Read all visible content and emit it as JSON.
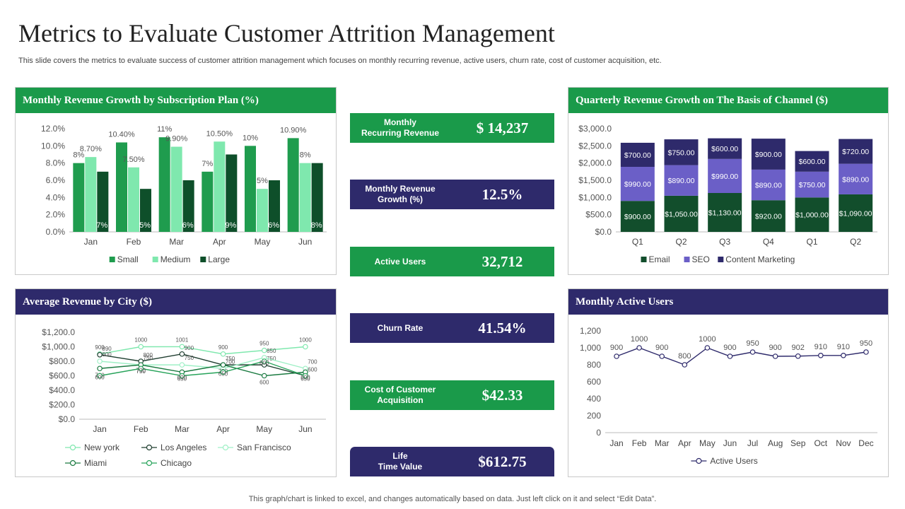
{
  "header": {
    "title": "Metrics to Evaluate Customer Attrition Management",
    "subtitle": "This slide covers the metrics to evaluate success of customer attrition management which focuses on monthly recurring revenue, active users, churn rate, cost of customer acquisition, etc."
  },
  "footer": "This graph/chart is linked to excel,  and changes automatically based on data. Just left click on it and select “Edit Data”.",
  "panels": {
    "monthly_growth": "Monthly Revenue Growth  by Subscription  Plan (%)",
    "quarterly": "Quarterly  Revenue Growth  on The Basis of Channel ($)",
    "city": "Average Revenue by City ($)",
    "active": "Monthly Active Users"
  },
  "kpis": [
    {
      "label": "Monthly\nRecurring Revenue",
      "value": "$ 14,237",
      "color": "green"
    },
    {
      "label": "Monthly Revenue\nGrowth (%)",
      "value": "12.5%",
      "color": "navy"
    },
    {
      "label": "Active Users",
      "value": "32,712",
      "color": "green"
    },
    {
      "label": "Churn Rate",
      "value": "41.54%",
      "color": "navy"
    },
    {
      "label": "Cost of Customer\nAcquisition",
      "value": "$42.33",
      "color": "green"
    },
    {
      "label": "Life\nTime Value",
      "value": "$612.75",
      "color": "navy"
    }
  ],
  "colors": {
    "green": "#1a9a4a",
    "navy": "#2e2a6b"
  },
  "chart_data": [
    {
      "type": "bar",
      "categories": [
        "Jan",
        "Feb",
        "Mar",
        "Apr",
        "May",
        "Jun"
      ],
      "series": [
        {
          "name": "Small",
          "values": [
            8,
            10.4,
            11,
            7,
            10,
            10.9
          ],
          "labels": [
            "8%",
            "10.40%",
            "11%",
            "7%",
            "10%",
            "10.90%"
          ],
          "color": "#1f9c4e"
        },
        {
          "name": "Medium",
          "values": [
            8.7,
            7.5,
            9.9,
            10.5,
            5,
            8
          ],
          "labels": [
            "8.70%",
            "7.50%",
            "9.90%",
            "10.50%",
            "5%",
            "8%"
          ],
          "color": "#7fe8ae"
        },
        {
          "name": "Large",
          "values": [
            7,
            5,
            6,
            9,
            6,
            8
          ],
          "labels": [
            "7%",
            "5%",
            "6%",
            "9%",
            "6%",
            "8%"
          ],
          "color": "#0e4f2a"
        }
      ],
      "ylim": [
        0,
        12
      ],
      "yticks": [
        "0.0%",
        "2.0%",
        "4.0%",
        "6.0%",
        "8.0%",
        "10.0%",
        "12.0%"
      ],
      "legend": "bottom"
    },
    {
      "type": "bar",
      "stacked": true,
      "categories": [
        "Q1",
        "Q2",
        "Q3",
        "Q4",
        "Q1",
        "Q2"
      ],
      "series": [
        {
          "name": "Email",
          "values": [
            900,
            1050,
            1130,
            920,
            1000,
            1090
          ],
          "labels": [
            "$900.00",
            "$1,050.00",
            "$1,130.00",
            "$920.00",
            "$1,000.00",
            "$1,090.00"
          ],
          "color": "#124e2c"
        },
        {
          "name": "SEO",
          "values": [
            990,
            890,
            990,
            890,
            750,
            890
          ],
          "labels": [
            "$990.00",
            "$890.00",
            "$990.00",
            "$890.00",
            "$750.00",
            "$890.00"
          ],
          "color": "#6b5fc7"
        },
        {
          "name": "Content Marketing",
          "values": [
            700,
            750,
            600,
            900,
            600,
            720
          ],
          "labels": [
            "$700.00",
            "$750.00",
            "$600.00",
            "$900.00",
            "$600.00",
            "$720.00"
          ],
          "color": "#2e2a6b"
        }
      ],
      "ylim": [
        0,
        3000
      ],
      "yticks": [
        "$0.0",
        "$500.0",
        "$1,000.0",
        "$1,500.0",
        "$2,000.0",
        "$2,500.0",
        "$3,000.0"
      ],
      "legend": "bottom"
    },
    {
      "type": "line",
      "categories": [
        "Jan",
        "Feb",
        "Mar",
        "Apr",
        "May",
        "Jun"
      ],
      "series": [
        {
          "name": "New york",
          "values": [
            900,
            1000,
            1001,
            900,
            950,
            1000
          ],
          "color": "#7fe8ae"
        },
        {
          "name": "Los Angeles",
          "values": [
            890,
            800,
            900,
            750,
            750,
            600
          ],
          "color": "#1e3d2f"
        },
        {
          "name": "San Francisco",
          "values": [
            800,
            750,
            750,
            700,
            850,
            700
          ],
          "color": "#9ff0c6"
        },
        {
          "name": "Miami",
          "values": [
            700,
            750,
            650,
            750,
            600,
            650
          ],
          "color": "#1a7a40"
        },
        {
          "name": "Chicago",
          "values": [
            600,
            700,
            600,
            650,
            800,
            600
          ],
          "color": "#27a35a"
        }
      ],
      "ylim": [
        0,
        1200
      ],
      "yticks": [
        "$0.0",
        "$200.0",
        "$400.0",
        "$600.0",
        "$800.0",
        "$1,000.0",
        "$1,200.0"
      ],
      "legend": "bottom"
    },
    {
      "type": "line",
      "categories": [
        "Jan",
        "Feb",
        "Mar",
        "Apr",
        "May",
        "Jun",
        "Jul",
        "Aug",
        "Sep",
        "Oct",
        "Nov",
        "Dec"
      ],
      "series": [
        {
          "name": "Active Users",
          "values": [
            900,
            1000,
            900,
            800,
            1000,
            900,
            950,
            900,
            902,
            910,
            910,
            950
          ],
          "color": "#2e2a6b"
        }
      ],
      "ylim": [
        0,
        1200
      ],
      "yticks": [
        "0",
        "200",
        "400",
        "600",
        "800",
        "1,000",
        "1,200"
      ],
      "legend": "bottom"
    }
  ]
}
